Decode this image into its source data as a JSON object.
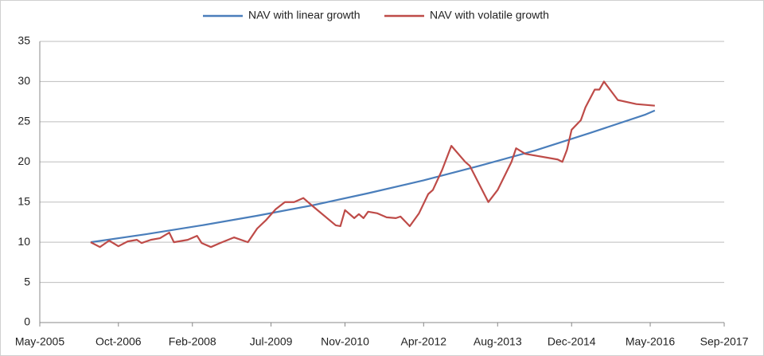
{
  "chart_data": {
    "type": "line",
    "legend": "top",
    "grid": true,
    "ylim": [
      0,
      35
    ],
    "yticks": [
      0,
      5,
      10,
      15,
      20,
      25,
      30,
      35
    ],
    "xlim": [
      "2005-05",
      "2017-09"
    ],
    "xticks": [
      {
        "value": "2005-05",
        "label": "May-2005"
      },
      {
        "value": "2006-10",
        "label": "Oct-2006"
      },
      {
        "value": "2008-02",
        "label": "Feb-2008"
      },
      {
        "value": "2009-07",
        "label": "Jul-2009"
      },
      {
        "value": "2010-11",
        "label": "Nov-2010"
      },
      {
        "value": "2012-04",
        "label": "Apr-2012"
      },
      {
        "value": "2013-08",
        "label": "Aug-2013"
      },
      {
        "value": "2014-12",
        "label": "Dec-2014"
      },
      {
        "value": "2016-05",
        "label": "May-2016"
      },
      {
        "value": "2017-09",
        "label": "Sep-2017"
      }
    ],
    "series": [
      {
        "name": "NAV with linear growth",
        "color": "#4a7ebb",
        "x": [
          "2006-04",
          "2007-04",
          "2008-04",
          "2009-04",
          "2010-04",
          "2011-04",
          "2012-04",
          "2013-04",
          "2014-04",
          "2015-04",
          "2016-04",
          "2016-06"
        ],
        "values": [
          10,
          11,
          12.1,
          13.3,
          14.6,
          16.1,
          17.7,
          19.5,
          21.4,
          23.6,
          25.9,
          26.4
        ]
      },
      {
        "name": "NAV with volatile growth",
        "color": "#be4b48",
        "x": [
          "2006-04",
          "2006-06",
          "2006-08",
          "2006-10",
          "2006-12",
          "2007-02",
          "2007-03",
          "2007-05",
          "2007-07",
          "2007-09",
          "2007-10",
          "2008-01",
          "2008-03",
          "2008-04",
          "2008-06",
          "2008-08",
          "2008-11",
          "2009-02",
          "2009-04",
          "2009-06",
          "2009-08",
          "2009-10",
          "2009-12",
          "2010-02",
          "2010-04",
          "2010-09",
          "2010-10",
          "2010-11",
          "2011-01",
          "2011-02",
          "2011-03",
          "2011-04",
          "2011-06",
          "2011-08",
          "2011-10",
          "2011-11",
          "2012-01",
          "2012-03",
          "2012-05",
          "2012-06",
          "2012-08",
          "2012-10",
          "2013-01",
          "2013-02",
          "2013-06",
          "2013-08",
          "2013-11",
          "2013-12",
          "2014-02",
          "2014-09",
          "2014-10",
          "2014-11",
          "2014-12",
          "2015-02",
          "2015-03",
          "2015-05",
          "2015-06",
          "2015-07",
          "2015-10",
          "2016-02",
          "2016-06"
        ],
        "values": [
          10,
          9.4,
          10.2,
          9.5,
          10.1,
          10.3,
          9.9,
          10.3,
          10.5,
          11.2,
          10,
          10.3,
          10.8,
          9.9,
          9.4,
          9.9,
          10.6,
          10,
          11.7,
          12.8,
          14.1,
          15,
          15,
          15.5,
          14.5,
          12.1,
          12,
          14,
          13,
          13.5,
          13,
          13.8,
          13.6,
          13.1,
          13,
          13.2,
          12,
          13.6,
          16,
          16.5,
          19,
          22,
          20,
          19.5,
          15,
          16.5,
          20,
          21.7,
          21,
          20.3,
          20,
          21.5,
          24,
          25.2,
          26.8,
          29,
          29,
          30,
          27.7,
          27.2,
          27
        ]
      }
    ]
  }
}
